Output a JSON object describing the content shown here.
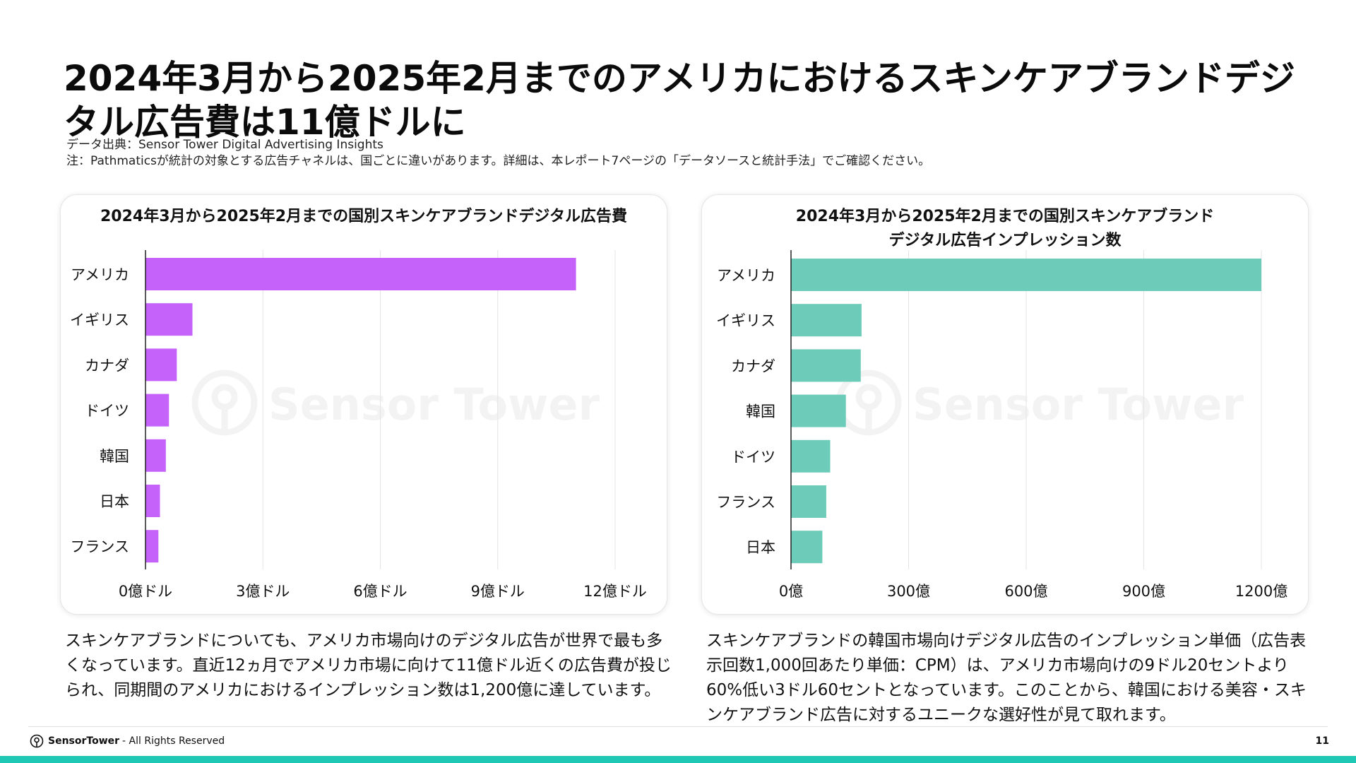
{
  "header": {
    "title": "2024年3月から2025年2月までのアメリカにおけるスキンケアブランドデジタル広告費は11億ドルに",
    "source_line": "データ出典：Sensor Tower Digital Advertising Insights",
    "note_line": "注：Pathmaticsが統計の対象とする広告チャネルは、国ごとに違いがあります。詳細は、本レポート7ページの「データソースと統計手法」でご確認ください。"
  },
  "colors": {
    "spend_bar": "#c462fa",
    "impression_bar": "#6dcbb9",
    "grid": "#e4e4e4",
    "axis": "#222222",
    "accent_bar": "#1ec8b4"
  },
  "watermark": "Sensor Tower",
  "chart_data": [
    {
      "type": "bar",
      "orientation": "horizontal",
      "title": "2024年3月から2025年2月までの国別スキンケアブランドデジタル広告費",
      "categories": [
        "アメリカ",
        "イギリス",
        "カナダ",
        "ドイツ",
        "韓国",
        "日本",
        "フランス"
      ],
      "values": [
        11.0,
        1.2,
        0.8,
        0.6,
        0.52,
        0.37,
        0.33
      ],
      "unit": "億ドル",
      "xlim": [
        0,
        13
      ],
      "x_ticks": [
        0,
        3,
        6,
        9,
        12
      ],
      "x_tick_labels": [
        "0億ドル",
        "3億ドル",
        "6億ドル",
        "9億ドル",
        "12億ドル"
      ],
      "grid": true,
      "color": "#c462fa"
    },
    {
      "type": "bar",
      "orientation": "horizontal",
      "title": "2024年3月から2025年2月までの国別スキンケアブランド\nデジタル広告インプレッション数",
      "categories": [
        "アメリカ",
        "イギリス",
        "カナダ",
        "韓国",
        "ドイツ",
        "フランス",
        "日本"
      ],
      "values": [
        1200,
        180,
        178,
        140,
        100,
        90,
        80
      ],
      "unit": "億",
      "xlim": [
        0,
        1250
      ],
      "x_ticks": [
        0,
        300,
        600,
        900,
        1200
      ],
      "x_tick_labels": [
        "0億",
        "300億",
        "600億",
        "900億",
        "1200億"
      ],
      "grid": true,
      "color": "#6dcbb9"
    }
  ],
  "paragraphs": {
    "left": "スキンケアブランドについても、アメリカ市場向けのデジタル広告が世界で最も多くなっています。直近12ヵ月でアメリカ市場に向けて11億ドル近くの広告費が投じられ、同期間のアメリカにおけるインプレッション数は1,200億に達しています。",
    "right": "スキンケアブランドの韓国市場向けデジタル広告のインプレッション単価（広告表示回数1,000回あたり単価：CPM）は、アメリカ市場向けの9ドル20セントより60%低い3ドル60セントとなっています。このことから、韓国における美容・スキンケアブランド広告に対するユニークな選好性が見て取れます。"
  },
  "footer": {
    "brand": "SensorTower",
    "rights": "- All Rights Reserved",
    "page_number": "11"
  }
}
